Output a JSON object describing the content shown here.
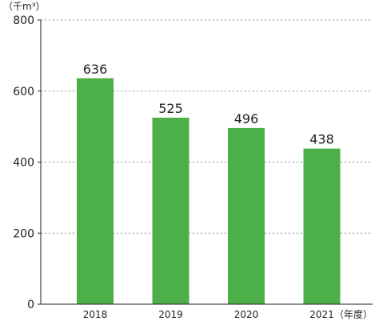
{
  "chart_data": {
    "type": "bar",
    "categories": [
      "2018",
      "2019",
      "2020",
      "2021"
    ],
    "values": [
      636,
      525,
      496,
      438
    ],
    "data_labels": [
      "636",
      "525",
      "496",
      "438"
    ],
    "y_ticks": [
      0,
      200,
      400,
      600,
      800
    ],
    "y_tick_labels": [
      "0",
      "200",
      "400",
      "600",
      "800"
    ],
    "ylim": [
      0,
      800
    ],
    "y_unit": "（千m³）",
    "x_unit": "（年度）",
    "grid": "horizontal dotted",
    "bar_color": "#4caf48",
    "axis_color": "#222222",
    "grid_color": "#888888"
  }
}
